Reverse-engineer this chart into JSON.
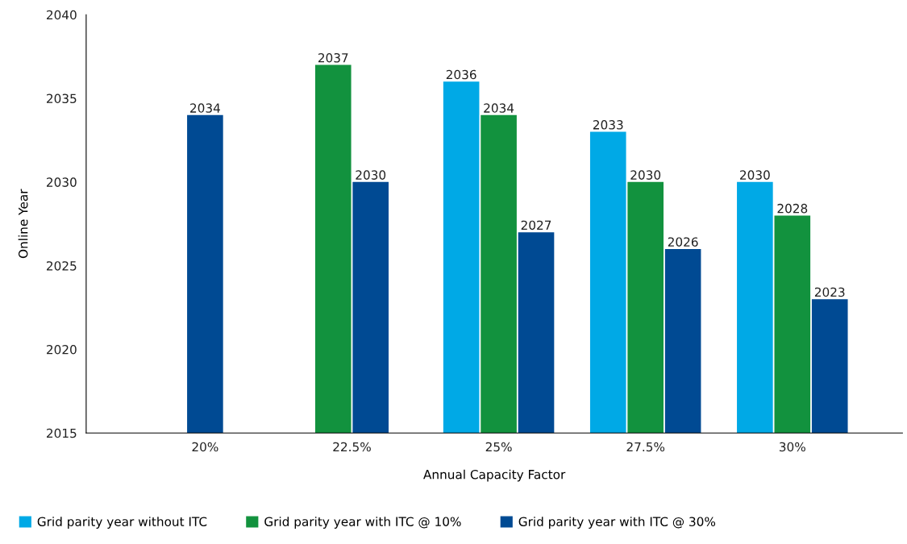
{
  "chart_data": {
    "type": "bar",
    "xlabel": "Annual Capacity Factor",
    "ylabel": "Online Year",
    "categories": [
      "20%",
      "22.5%",
      "25%",
      "27.5%",
      "30%"
    ],
    "series": [
      {
        "name": "Grid parity year without ITC",
        "color": "#00a9e6",
        "values": [
          null,
          null,
          2036,
          2033,
          2030
        ]
      },
      {
        "name": "Grid parity year with ITC @ 10%",
        "color": "#12923e",
        "values": [
          null,
          2037,
          2034,
          2030,
          2028
        ]
      },
      {
        "name": "Grid parity year with ITC @ 30%",
        "color": "#004a93",
        "values": [
          2034,
          2030,
          2027,
          2026,
          2023
        ]
      }
    ],
    "ylim": [
      2015,
      2040
    ],
    "yticks": [
      2015,
      2020,
      2025,
      2030,
      2035,
      2040
    ],
    "data_labels": true,
    "grid": false,
    "legend": "bottom"
  }
}
